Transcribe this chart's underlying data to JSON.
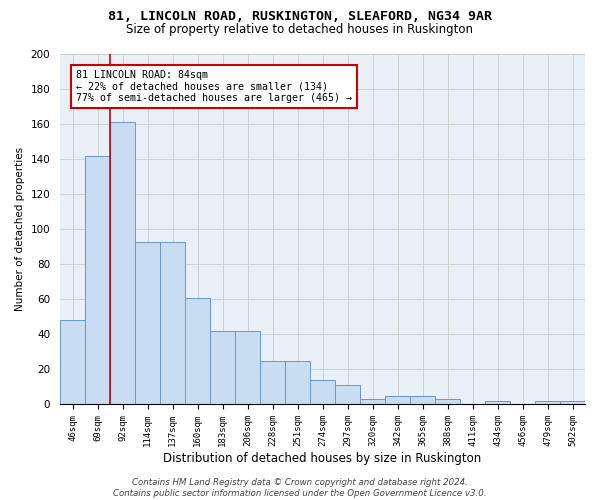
{
  "title1": "81, LINCOLN ROAD, RUSKINGTON, SLEAFORD, NG34 9AR",
  "title2": "Size of property relative to detached houses in Ruskington",
  "xlabel": "Distribution of detached houses by size in Ruskington",
  "ylabel": "Number of detached properties",
  "categories": [
    "46sqm",
    "69sqm",
    "92sqm",
    "114sqm",
    "137sqm",
    "160sqm",
    "183sqm",
    "206sqm",
    "228sqm",
    "251sqm",
    "274sqm",
    "297sqm",
    "320sqm",
    "342sqm",
    "365sqm",
    "388sqm",
    "411sqm",
    "434sqm",
    "456sqm",
    "479sqm",
    "502sqm"
  ],
  "values": [
    48,
    142,
    161,
    93,
    93,
    61,
    42,
    42,
    25,
    25,
    14,
    11,
    3,
    5,
    5,
    3,
    0,
    2,
    0,
    2,
    2
  ],
  "bar_color": "#c9ddf2",
  "bar_edge_color": "#6699cc",
  "annotation_text": "81 LINCOLN ROAD: 84sqm\n← 22% of detached houses are smaller (134)\n77% of semi-detached houses are larger (465) →",
  "red_line_x": 1.5,
  "vline_color": "#cc0000",
  "box_edge_color": "#cc0000",
  "footer": "Contains HM Land Registry data © Crown copyright and database right 2024.\nContains public sector information licensed under the Open Government Licence v3.0.",
  "ylim": [
    0,
    200
  ],
  "yticks": [
    0,
    20,
    40,
    60,
    80,
    100,
    120,
    140,
    160,
    180,
    200
  ],
  "grid_color": "#cccccc",
  "bg_color": "#eaf0f8"
}
